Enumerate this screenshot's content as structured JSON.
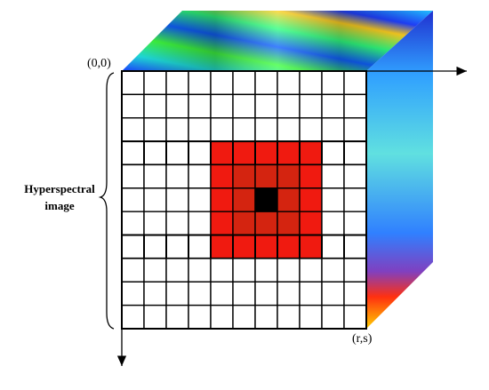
{
  "labels": {
    "origin": "(0,0)",
    "end": "(r,s)",
    "side": [
      "Hyperspectral",
      "image"
    ]
  }
}
